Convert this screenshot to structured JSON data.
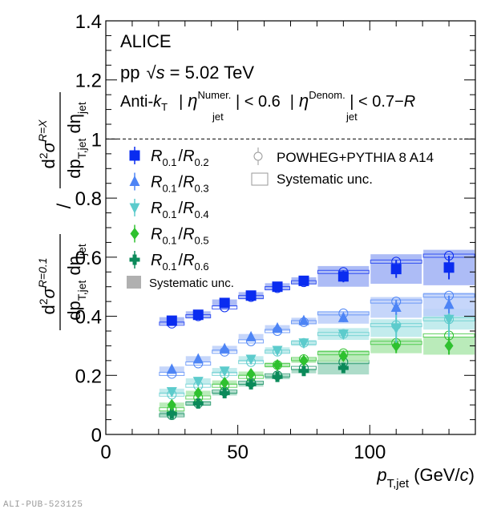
{
  "chart_data": {
    "type": "scatter",
    "title": "",
    "experiment_label": "ALICE",
    "collision_label": "pp  √s = 5.02 TeV",
    "collision_parts": {
      "system": "pp",
      "sqrt": "√",
      "s": "s",
      "energy": " = 5.02 TeV"
    },
    "jet_label": {
      "algo": "Anti-",
      "k": "k",
      "k_sub": "T",
      "eta": "η",
      "sub": "jet",
      "numer_sup": "Numer.",
      "numer_cut": " | < 0.6",
      "denom_sup": "Denom.",
      "denom_cut": " | < 0.7−",
      "R": "R",
      "bar": "|"
    },
    "xlabel": "p_T,jet (GeV/c)",
    "xlabel_parts": {
      "p": "p",
      "sub": "T,jet",
      "unit_open": " (GeV/",
      "c": "c",
      "unit_close": ")"
    },
    "ylabel": "(d²σ^{R=0.1}/dp_T,jet dη_jet) / (d²σ^{R=X}/dp_T,jet dη_jet)",
    "ylabel_parts": {
      "d2": "d",
      "sq": "2",
      "sigma": "σ",
      "num_sup": "R=0.1",
      "den_sup": "R=X",
      "dp": "dp",
      "pT": "T,jet",
      "deta": " dη",
      "jet": "jet",
      "slash": "/"
    },
    "xlim": [
      0,
      140
    ],
    "ylim": [
      0,
      1.4
    ],
    "x_ticks": [
      0,
      50,
      100
    ],
    "x_tick_labels": [
      "0",
      "50",
      "100"
    ],
    "y_ticks": [
      0,
      0.2,
      0.4,
      0.6,
      0.8,
      1.0,
      1.2,
      1.4
    ],
    "y_tick_labels": [
      "0",
      "0.2",
      "0.4",
      "0.6",
      "0.8",
      "1",
      "1.2",
      "1.4"
    ],
    "reference_line": 1.0,
    "grid": false,
    "bins": [
      [
        20,
        30
      ],
      [
        30,
        40
      ],
      [
        40,
        50
      ],
      [
        50,
        60
      ],
      [
        60,
        70
      ],
      [
        70,
        80
      ],
      [
        80,
        100
      ],
      [
        100,
        120
      ],
      [
        120,
        140
      ]
    ],
    "x": [
      25,
      35,
      45,
      55,
      65,
      75,
      90,
      110,
      130
    ],
    "series": [
      {
        "name": "R0.1/R0.2",
        "label_main": "R",
        "sub1": "0.1",
        "sep": "/",
        "sub2": "0.2",
        "marker": "square",
        "color": "#0a2cf0",
        "sys_color": "#9fb0f5",
        "values": [
          0.385,
          0.405,
          0.445,
          0.47,
          0.5,
          0.52,
          0.535,
          0.56,
          0.565
        ],
        "stat_err": [
          0.008,
          0.008,
          0.008,
          0.008,
          0.008,
          0.01,
          0.02,
          0.03,
          0.04
        ],
        "sys_err": [
          0.012,
          0.012,
          0.012,
          0.012,
          0.012,
          0.012,
          0.035,
          0.05,
          0.06
        ],
        "powheg": [
          0.375,
          0.4,
          0.43,
          0.465,
          0.495,
          0.515,
          0.55,
          0.585,
          0.605
        ]
      },
      {
        "name": "R0.1/R0.3",
        "label_main": "R",
        "sub1": "0.1",
        "sep": "/",
        "sub2": "0.3",
        "marker": "triangle-up",
        "color": "#4d84f5",
        "sys_color": "#bccff9",
        "values": [
          0.22,
          0.255,
          0.29,
          0.33,
          0.36,
          0.385,
          0.395,
          0.43,
          0.44
        ],
        "stat_err": [
          0.006,
          0.006,
          0.006,
          0.006,
          0.006,
          0.008,
          0.015,
          0.025,
          0.03
        ],
        "sys_err": [
          0.01,
          0.01,
          0.01,
          0.01,
          0.01,
          0.01,
          0.02,
          0.035,
          0.04
        ],
        "powheg": [
          0.205,
          0.24,
          0.28,
          0.315,
          0.35,
          0.38,
          0.41,
          0.45,
          0.47
        ]
      },
      {
        "name": "R0.1/R0.4",
        "label_main": "R",
        "sub1": "0.1",
        "sep": "/",
        "sub2": "0.4",
        "marker": "triangle-down",
        "color": "#5ccbcc",
        "sys_color": "#b9e9ea",
        "values": [
          0.145,
          0.18,
          0.215,
          0.255,
          0.285,
          0.31,
          0.34,
          0.36,
          0.39
        ],
        "stat_err": [
          0.006,
          0.006,
          0.006,
          0.006,
          0.006,
          0.008,
          0.015,
          0.05,
          0.06
        ],
        "sys_err": [
          0.01,
          0.01,
          0.01,
          0.01,
          0.01,
          0.01,
          0.02,
          0.03,
          0.035
        ],
        "powheg": [
          0.135,
          0.165,
          0.205,
          0.245,
          0.28,
          0.31,
          0.34,
          0.37,
          0.39
        ]
      },
      {
        "name": "R0.1/R0.5",
        "label_main": "R",
        "sub1": "0.1",
        "sep": "/",
        "sub2": "0.5",
        "marker": "diamond",
        "color": "#2fc12f",
        "sys_color": "#aee8ae",
        "values": [
          0.1,
          0.14,
          0.175,
          0.205,
          0.235,
          0.25,
          0.265,
          0.3,
          0.3
        ],
        "stat_err": [
          0.006,
          0.006,
          0.006,
          0.006,
          0.006,
          0.008,
          0.015,
          0.025,
          0.03
        ],
        "sys_err": [
          0.008,
          0.008,
          0.008,
          0.008,
          0.008,
          0.008,
          0.02,
          0.025,
          0.03
        ],
        "powheg": [
          0.085,
          0.125,
          0.165,
          0.195,
          0.235,
          0.255,
          0.275,
          0.31,
          0.335
        ]
      },
      {
        "name": "R0.1/R0.6",
        "label_main": "R",
        "sub1": "0.1",
        "sep": "/",
        "sub2": "0.6",
        "marker": "cross",
        "color": "#0b8a5a",
        "sys_color": "#9fd6c0",
        "values": [
          0.07,
          0.105,
          0.14,
          0.17,
          0.195,
          0.215,
          0.225
        ],
        "stat_err": [
          0.006,
          0.006,
          0.006,
          0.006,
          0.006,
          0.008,
          0.015
        ],
        "sys_err": [
          0.008,
          0.008,
          0.008,
          0.008,
          0.008,
          0.008,
          0.022
        ],
        "powheg": [
          0.065,
          0.105,
          0.145,
          0.175,
          0.2,
          0.225,
          0.245
        ]
      }
    ],
    "legend_left": {
      "placement": "middle-left",
      "sys_label": "Systematic unc.",
      "sys_color": "#b0b0b0"
    },
    "legend_right": {
      "placement": "top-right",
      "model_label": "POWHEG+PYTHIA 8 A14",
      "sys_label": "Systematic unc."
    },
    "publication_id": "ALI-PUB-523125"
  }
}
